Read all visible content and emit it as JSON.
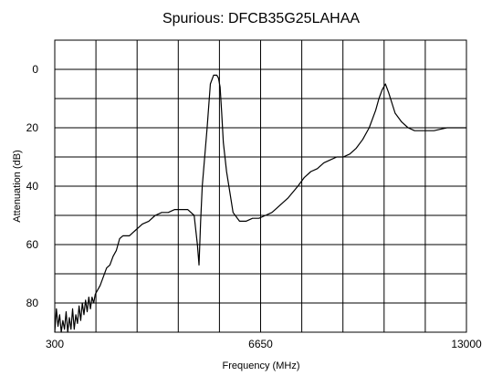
{
  "chart_data": {
    "type": "line",
    "title": "Spurious: DFCB35G25LAHAA",
    "xlabel": "Frequency (MHz)",
    "ylabel": "Attenuation (dB)",
    "xlim": [
      300,
      13000
    ],
    "ylim": [
      90,
      -10
    ],
    "y_inverted": true,
    "grid": true,
    "x_ticks": [
      300,
      6650,
      13000
    ],
    "x_tick_labels": [
      "300",
      "6650",
      "13000"
    ],
    "y_ticks": [
      0,
      20,
      40,
      60,
      80
    ],
    "y_tick_labels": [
      "0",
      "20",
      "40",
      "60",
      "80"
    ],
    "grid_x": [
      300,
      1570,
      2840,
      4110,
      5380,
      6650,
      7920,
      9190,
      10460,
      11730,
      13000
    ],
    "grid_y": [
      -10,
      0,
      10,
      20,
      30,
      40,
      50,
      60,
      70,
      80,
      90
    ],
    "line_color": "#000000",
    "series": [
      {
        "name": "",
        "x": [
          300,
          350,
          400,
          450,
          500,
          550,
          600,
          650,
          700,
          750,
          800,
          850,
          900,
          950,
          1000,
          1050,
          1100,
          1150,
          1200,
          1250,
          1300,
          1350,
          1400,
          1450,
          1500,
          1550,
          1600,
          1700,
          1800,
          1900,
          2000,
          2100,
          2200,
          2300,
          2400,
          2500,
          2600,
          2700,
          2800,
          2900,
          3000,
          3200,
          3400,
          3600,
          3800,
          4000,
          4200,
          4400,
          4600,
          4700,
          4750,
          4800,
          4850,
          5000,
          5100,
          5200,
          5300,
          5350,
          5400,
          5450,
          5500,
          5600,
          5700,
          5800,
          6000,
          6200,
          6400,
          6600,
          6800,
          7000,
          7200,
          7500,
          7800,
          8000,
          8200,
          8400,
          8600,
          8800,
          9000,
          9200,
          9400,
          9600,
          9800,
          10000,
          10100,
          10200,
          10300,
          10400,
          10500,
          10600,
          10800,
          11000,
          11200,
          11400,
          11600,
          11800,
          12000,
          12200,
          12400,
          12600,
          12800,
          13000
        ],
        "y": [
          90,
          82,
          88,
          84,
          90,
          86,
          89,
          83,
          90,
          85,
          89,
          82,
          89,
          84,
          87,
          81,
          86,
          80,
          84,
          79,
          83,
          78,
          82,
          78,
          80,
          77,
          76,
          74,
          71,
          68,
          67,
          64,
          62,
          58,
          57,
          57,
          57,
          56,
          55,
          54,
          53,
          52,
          50,
          49,
          49,
          48,
          48,
          48,
          50,
          60,
          67,
          52,
          40,
          20,
          5,
          2,
          2,
          3,
          6,
          15,
          25,
          35,
          42,
          49,
          52,
          52,
          51,
          51,
          50,
          49,
          47,
          44,
          40,
          37,
          35,
          34,
          32,
          31,
          30,
          30,
          29,
          27,
          24,
          20,
          17,
          14,
          10,
          7,
          5,
          8,
          15,
          18,
          20,
          21,
          21,
          21,
          21,
          20.5,
          20,
          20,
          20,
          20
        ]
      }
    ]
  }
}
